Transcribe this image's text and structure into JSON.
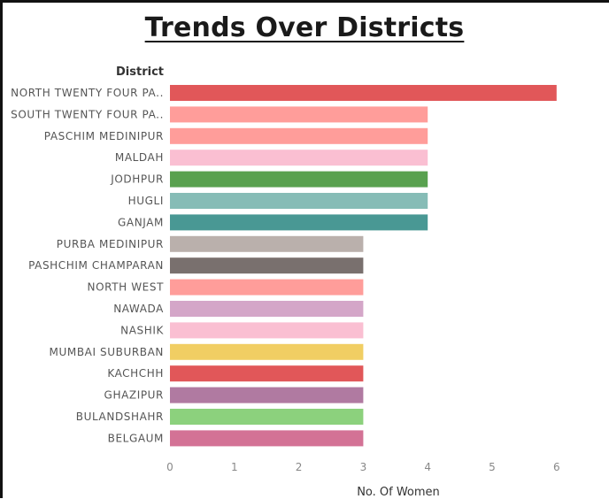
{
  "page": {
    "title": "Trends Over Districts",
    "dimension_header": "District"
  },
  "chart_data": {
    "type": "bar",
    "orientation": "horizontal",
    "title": "Trends Over Districts",
    "ylabel": "District",
    "xlabel": "No. Of Women",
    "xlim": [
      0,
      7
    ],
    "x_ticks": [
      "0",
      "1",
      "2",
      "3",
      "4",
      "5",
      "6"
    ],
    "grid": false,
    "categories": [
      "NORTH TWENTY FOUR PA..",
      "SOUTH TWENTY FOUR PA..",
      "PASCHIM MEDINIPUR",
      "MALDAH",
      "JODHPUR",
      "HUGLI",
      "GANJAM",
      "PURBA MEDINIPUR",
      "PASHCHIM CHAMPARAN",
      "NORTH WEST",
      "NAWADA",
      "NASHIK",
      "MUMBAI SUBURBAN",
      "KACHCHH",
      "GHAZIPUR",
      "BULANDSHAHR",
      "BELGAUM"
    ],
    "values": [
      6,
      4,
      4,
      4,
      4,
      4,
      4,
      3,
      3,
      3,
      3,
      3,
      3,
      3,
      3,
      3,
      3
    ],
    "colors": [
      "#e15759",
      "#ff9d9a",
      "#ff9d9a",
      "#fabfd2",
      "#59a14f",
      "#86bcb6",
      "#499894",
      "#bab0ac",
      "#79706e",
      "#ff9d9a",
      "#d4a6c8",
      "#fabfd2",
      "#f1ce63",
      "#e15759",
      "#b07aa1",
      "#8cd17d",
      "#d37295"
    ]
  }
}
